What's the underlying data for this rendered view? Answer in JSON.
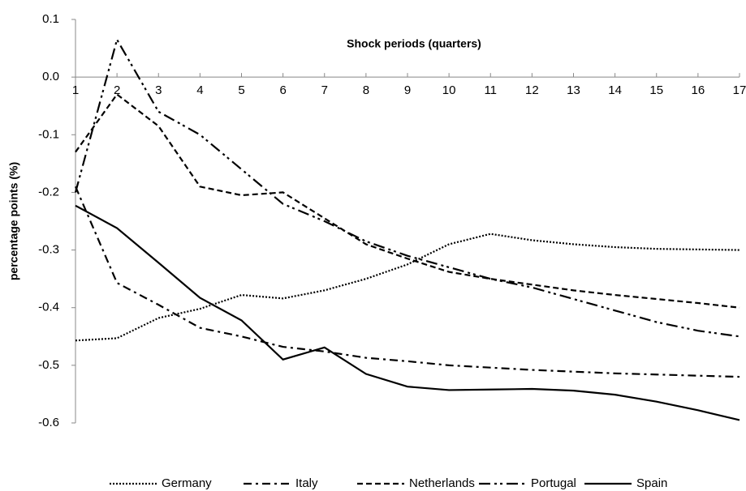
{
  "chart_data": {
    "type": "line",
    "title": "Shock periods (quarters)",
    "y_label": "percentage points (%)",
    "x": [
      1,
      2,
      3,
      4,
      5,
      6,
      7,
      8,
      9,
      10,
      11,
      12,
      13,
      14,
      15,
      16,
      17
    ],
    "xlim": [
      1,
      17
    ],
    "xticks": [
      1,
      2,
      3,
      4,
      5,
      6,
      7,
      8,
      9,
      10,
      11,
      12,
      13,
      14,
      15,
      16,
      17
    ],
    "ylim": [
      -0.6,
      0.1
    ],
    "yticks": [
      0.1,
      {
        "value": 0,
        "label": "0.0"
      },
      -0.1,
      -0.2,
      -0.3,
      -0.4,
      -0.5,
      -0.6
    ],
    "grid": false,
    "legend": "bottom",
    "series": [
      {
        "name": "Germany",
        "color": "#000000",
        "dash": "dotted",
        "values": [
          -0.457,
          -0.453,
          -0.418,
          -0.402,
          -0.378,
          -0.384,
          -0.37,
          -0.35,
          -0.325,
          -0.29,
          -0.272,
          -0.283,
          -0.29,
          -0.295,
          -0.298,
          -0.299,
          -0.3
        ]
      },
      {
        "name": "Italy",
        "color": "#000000",
        "dash": "dash-dot",
        "values": [
          -0.19,
          -0.357,
          -0.395,
          -0.435,
          -0.45,
          -0.468,
          -0.476,
          -0.487,
          -0.493,
          -0.5,
          -0.504,
          -0.508,
          -0.511,
          -0.514,
          -0.516,
          -0.518,
          -0.52
        ]
      },
      {
        "name": "Netherlands",
        "color": "#000000",
        "dash": "dashed",
        "values": [
          -0.13,
          -0.03,
          -0.085,
          -0.19,
          -0.205,
          -0.2,
          -0.245,
          -0.29,
          -0.315,
          -0.338,
          -0.35,
          -0.36,
          -0.37,
          -0.378,
          -0.385,
          -0.392,
          -0.4
        ]
      },
      {
        "name": "Portugal",
        "color": "#000000",
        "dash": "dash-dot-dot",
        "values": [
          -0.2,
          0.065,
          -0.06,
          -0.1,
          -0.16,
          -0.22,
          -0.25,
          -0.285,
          -0.31,
          -0.33,
          -0.35,
          -0.365,
          -0.385,
          -0.405,
          -0.425,
          -0.44,
          -0.45
        ]
      },
      {
        "name": "Spain",
        "color": "#000000",
        "dash": "solid",
        "values": [
          -0.223,
          -0.262,
          -0.322,
          -0.383,
          -0.422,
          -0.49,
          -0.469,
          -0.515,
          -0.537,
          -0.543,
          -0.542,
          -0.541,
          -0.544,
          -0.551,
          -0.563,
          -0.578,
          -0.595
        ]
      }
    ]
  }
}
